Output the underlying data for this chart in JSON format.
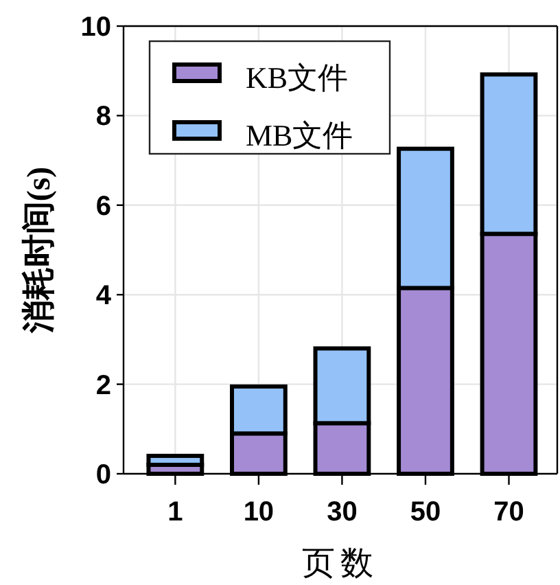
{
  "chart_data": {
    "type": "bar",
    "stacked": true,
    "xlabel": "页数",
    "ylabel": "消耗时间(s)",
    "categories": [
      "1",
      "10",
      "30",
      "50",
      "70"
    ],
    "series": [
      {
        "name": "KB文件",
        "color": "#a48bd3",
        "values": [
          0.2,
          0.9,
          1.13,
          4.15,
          5.36
        ]
      },
      {
        "name": "MB文件",
        "color": "#93c1f8",
        "values": [
          0.2,
          1.05,
          1.67,
          3.11,
          3.56
        ]
      }
    ],
    "ylim": [
      0,
      10
    ],
    "yticks": [
      0,
      2,
      4,
      6,
      8,
      10
    ],
    "grid": true,
    "legend": "top left"
  }
}
